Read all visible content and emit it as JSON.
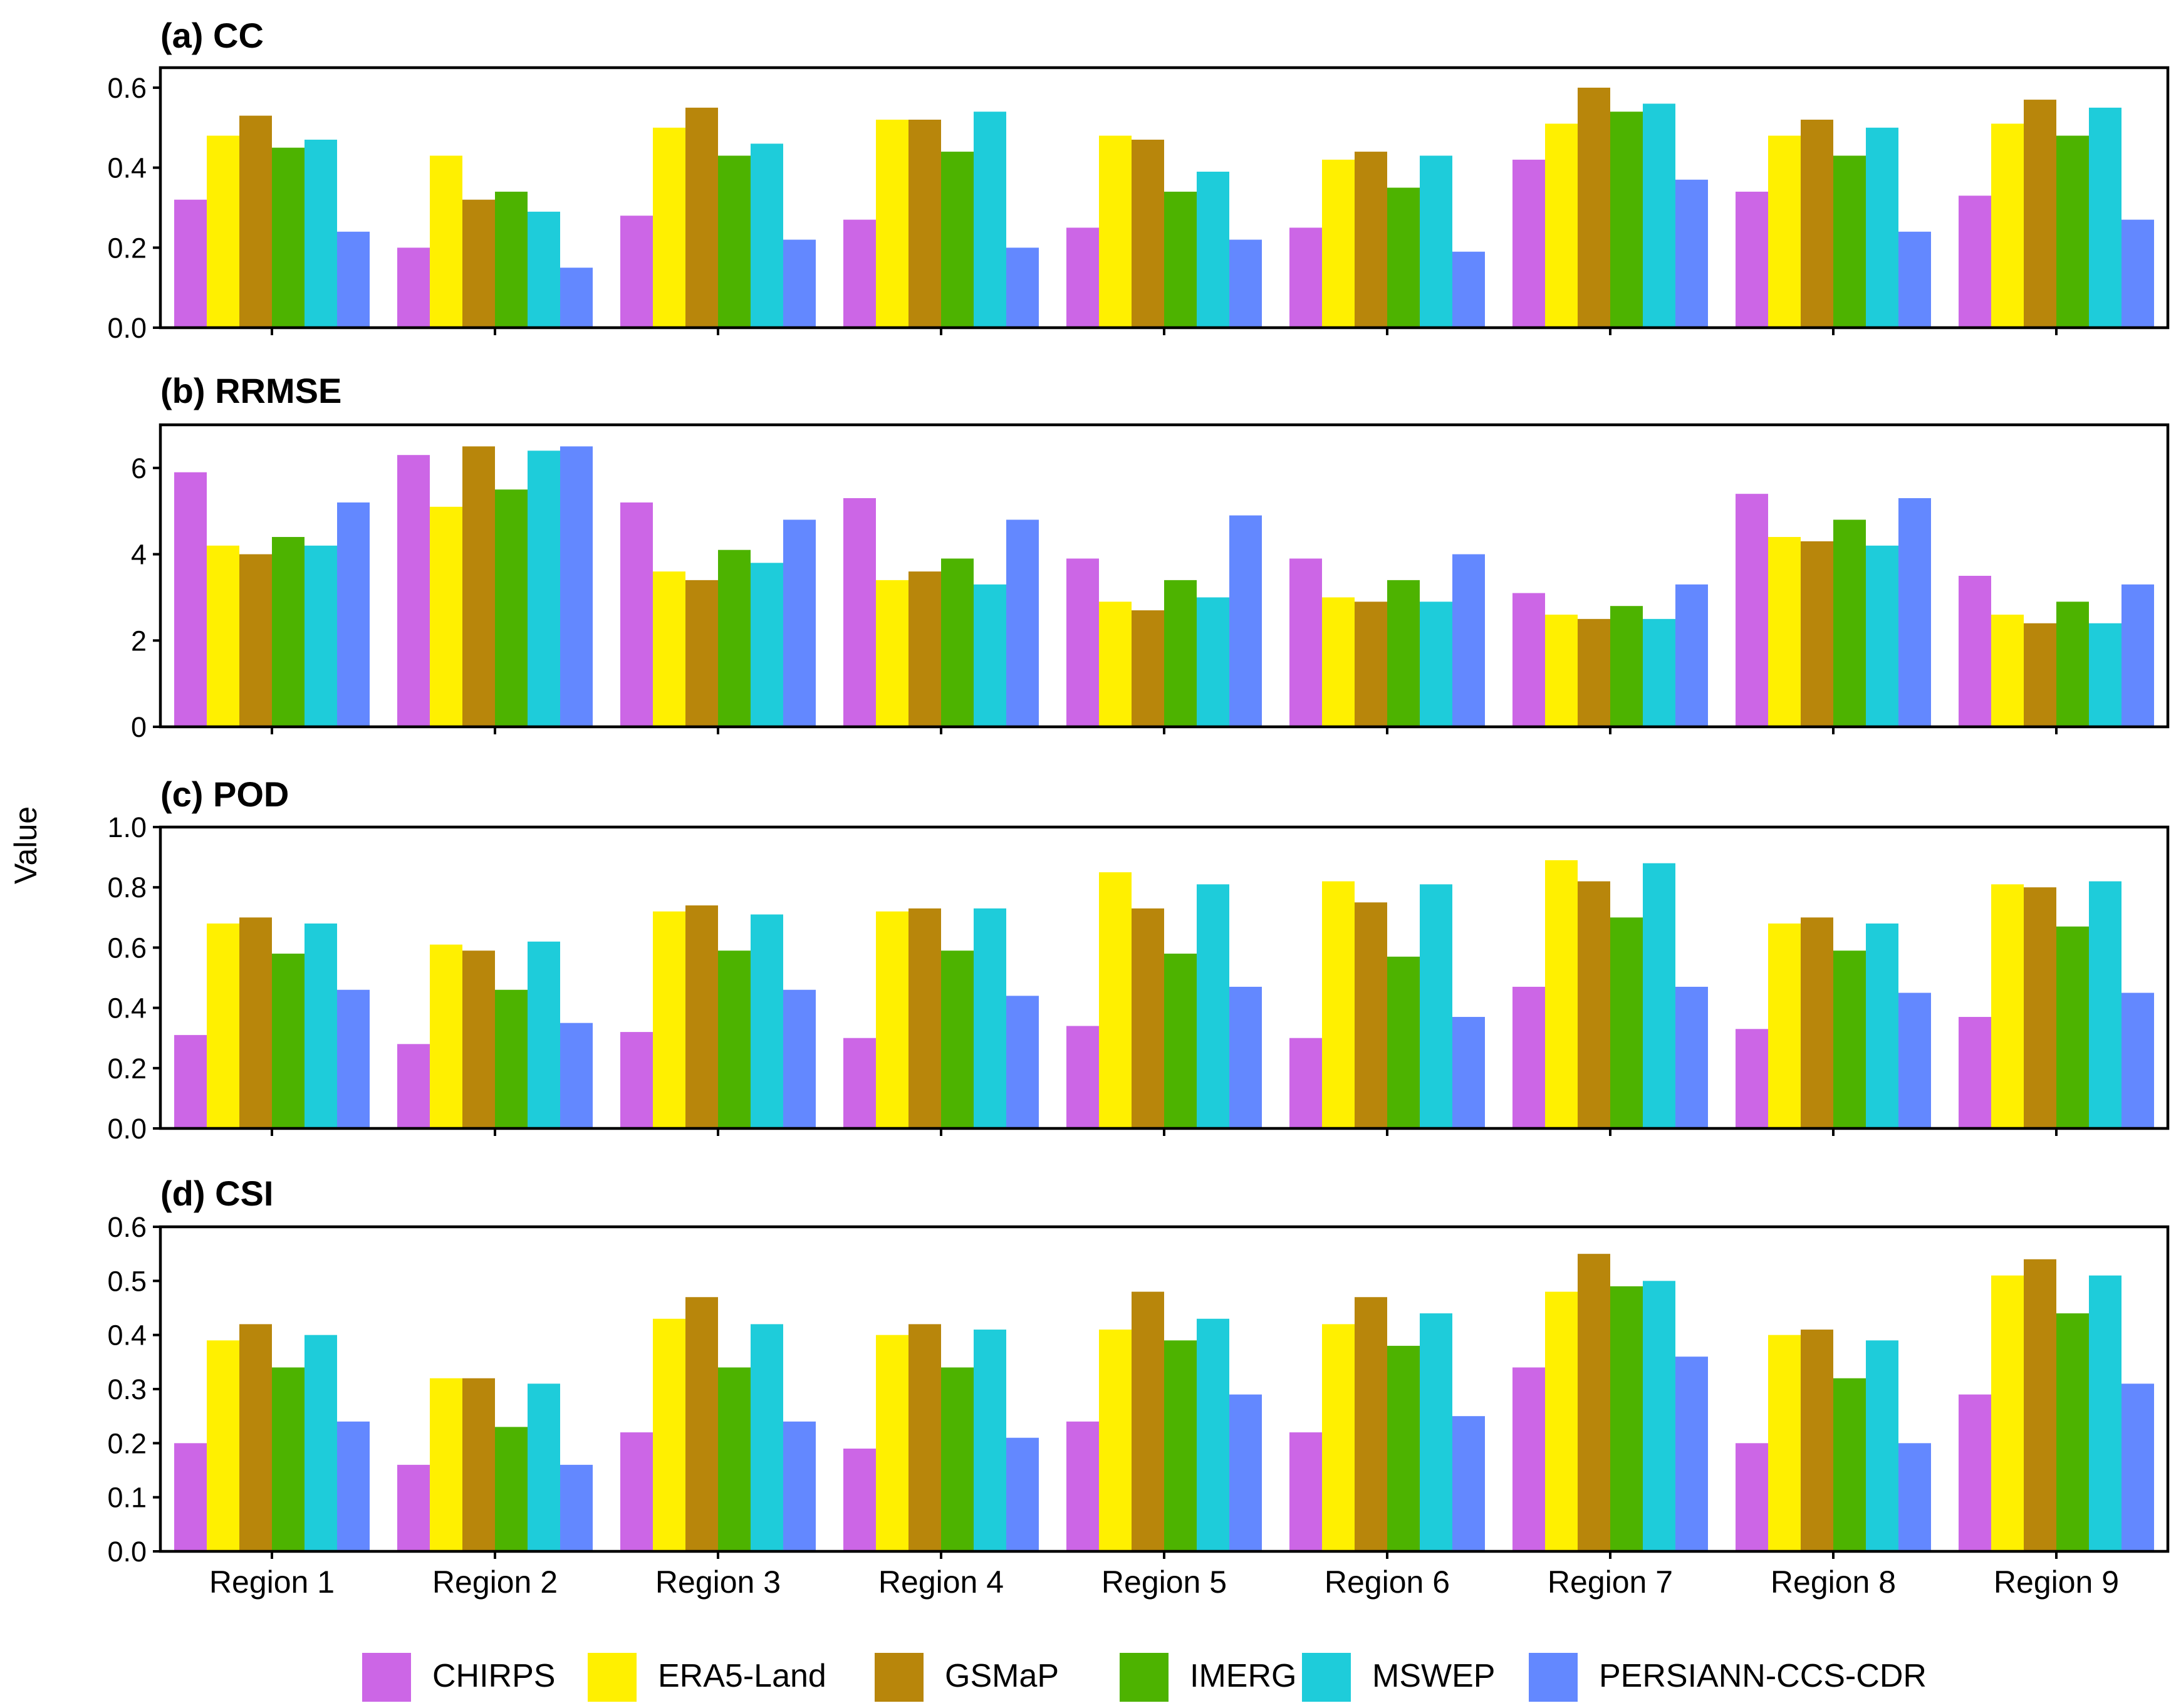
{
  "chart_data": {
    "type": "bar",
    "ylabel": "Value",
    "categories": [
      "Region 1",
      "Region 2",
      "Region 3",
      "Region 4",
      "Region 5",
      "Region 6",
      "Region 7",
      "Region 8",
      "Region 9"
    ],
    "legend": {
      "position": "bottom",
      "entries": [
        {
          "name": "CHIRPS",
          "color": "#CC66E6"
        },
        {
          "name": "ERA5-Land",
          "color": "#FFF000"
        },
        {
          "name": "GSMaP",
          "color": "#B8860B"
        },
        {
          "name": "IMERG",
          "color": "#4DB300"
        },
        {
          "name": "MSWEP",
          "color": "#1ECCDA"
        },
        {
          "name": "PERSIANN-CCS-CDR",
          "color": "#6388FF"
        }
      ]
    },
    "panels": [
      {
        "title": "(a) CC",
        "ylim": [
          0,
          0.65
        ],
        "yticks": [
          0.0,
          0.2,
          0.4,
          0.6
        ],
        "yticklabels": [
          "0.0",
          "0.2",
          "0.4",
          "0.6"
        ],
        "series": [
          {
            "name": "CHIRPS",
            "values": [
              0.32,
              0.2,
              0.28,
              0.27,
              0.25,
              0.25,
              0.42,
              0.34,
              0.33
            ]
          },
          {
            "name": "ERA5-Land",
            "values": [
              0.48,
              0.43,
              0.5,
              0.52,
              0.48,
              0.42,
              0.51,
              0.48,
              0.51
            ]
          },
          {
            "name": "GSMaP",
            "values": [
              0.53,
              0.32,
              0.55,
              0.52,
              0.47,
              0.44,
              0.6,
              0.52,
              0.57
            ]
          },
          {
            "name": "IMERG",
            "values": [
              0.45,
              0.34,
              0.43,
              0.44,
              0.34,
              0.35,
              0.54,
              0.43,
              0.48
            ]
          },
          {
            "name": "MSWEP",
            "values": [
              0.47,
              0.29,
              0.46,
              0.54,
              0.39,
              0.43,
              0.56,
              0.5,
              0.55
            ]
          },
          {
            "name": "PERSIANN-CCS-CDR",
            "values": [
              0.24,
              0.15,
              0.22,
              0.2,
              0.22,
              0.19,
              0.37,
              0.24,
              0.27
            ]
          }
        ]
      },
      {
        "title": "(b) RRMSE",
        "ylim": [
          0,
          7
        ],
        "yticks": [
          0,
          2,
          4,
          6
        ],
        "yticklabels": [
          "0",
          "2",
          "4",
          "6"
        ],
        "series": [
          {
            "name": "CHIRPS",
            "values": [
              5.9,
              6.3,
              5.2,
              5.3,
              3.9,
              3.9,
              3.1,
              5.4,
              3.5
            ]
          },
          {
            "name": "ERA5-Land",
            "values": [
              4.2,
              5.1,
              3.6,
              3.4,
              2.9,
              3.0,
              2.6,
              4.4,
              2.6
            ]
          },
          {
            "name": "GSMaP",
            "values": [
              4.0,
              6.5,
              3.4,
              3.6,
              2.7,
              2.9,
              2.5,
              4.3,
              2.4
            ]
          },
          {
            "name": "IMERG",
            "values": [
              4.4,
              5.5,
              4.1,
              3.9,
              3.4,
              3.4,
              2.8,
              4.8,
              2.9
            ]
          },
          {
            "name": "MSWEP",
            "values": [
              4.2,
              6.4,
              3.8,
              3.3,
              3.0,
              2.9,
              2.5,
              4.2,
              2.4
            ]
          },
          {
            "name": "PERSIANN-CCS-CDR",
            "values": [
              5.2,
              6.5,
              4.8,
              4.8,
              4.9,
              4.0,
              3.3,
              5.3,
              3.3
            ]
          }
        ]
      },
      {
        "title": "(c) POD",
        "ylim": [
          0,
          1.0
        ],
        "yticks": [
          0.0,
          0.2,
          0.4,
          0.6,
          0.8,
          1.0
        ],
        "yticklabels": [
          "0.0",
          "0.2",
          "0.4",
          "0.6",
          "0.8",
          "1.0"
        ],
        "series": [
          {
            "name": "CHIRPS",
            "values": [
              0.31,
              0.28,
              0.32,
              0.3,
              0.34,
              0.3,
              0.47,
              0.33,
              0.37
            ]
          },
          {
            "name": "ERA5-Land",
            "values": [
              0.68,
              0.61,
              0.72,
              0.72,
              0.85,
              0.82,
              0.89,
              0.68,
              0.81
            ]
          },
          {
            "name": "GSMaP",
            "values": [
              0.7,
              0.59,
              0.74,
              0.73,
              0.73,
              0.75,
              0.82,
              0.7,
              0.8
            ]
          },
          {
            "name": "IMERG",
            "values": [
              0.58,
              0.46,
              0.59,
              0.59,
              0.58,
              0.57,
              0.7,
              0.59,
              0.67
            ]
          },
          {
            "name": "MSWEP",
            "values": [
              0.68,
              0.62,
              0.71,
              0.73,
              0.81,
              0.81,
              0.88,
              0.68,
              0.82
            ]
          },
          {
            "name": "PERSIANN-CCS-CDR",
            "values": [
              0.46,
              0.35,
              0.46,
              0.44,
              0.47,
              0.37,
              0.47,
              0.45,
              0.45
            ]
          }
        ]
      },
      {
        "title": "(d) CSI",
        "ylim": [
          0,
          0.6
        ],
        "yticks": [
          0.0,
          0.1,
          0.2,
          0.3,
          0.4,
          0.5,
          0.6
        ],
        "yticklabels": [
          "0.0",
          "0.1",
          "0.2",
          "0.3",
          "0.4",
          "0.5",
          "0.6"
        ],
        "series": [
          {
            "name": "CHIRPS",
            "values": [
              0.2,
              0.16,
              0.22,
              0.19,
              0.24,
              0.22,
              0.34,
              0.2,
              0.29
            ]
          },
          {
            "name": "ERA5-Land",
            "values": [
              0.39,
              0.32,
              0.43,
              0.4,
              0.41,
              0.42,
              0.48,
              0.4,
              0.51
            ]
          },
          {
            "name": "GSMaP",
            "values": [
              0.42,
              0.32,
              0.47,
              0.42,
              0.48,
              0.47,
              0.55,
              0.41,
              0.54
            ]
          },
          {
            "name": "IMERG",
            "values": [
              0.34,
              0.23,
              0.34,
              0.34,
              0.39,
              0.38,
              0.49,
              0.32,
              0.44
            ]
          },
          {
            "name": "MSWEP",
            "values": [
              0.4,
              0.31,
              0.42,
              0.41,
              0.43,
              0.44,
              0.5,
              0.39,
              0.51
            ]
          },
          {
            "name": "PERSIANN-CCS-CDR",
            "values": [
              0.24,
              0.16,
              0.24,
              0.21,
              0.29,
              0.25,
              0.36,
              0.2,
              0.31
            ]
          }
        ]
      }
    ]
  }
}
